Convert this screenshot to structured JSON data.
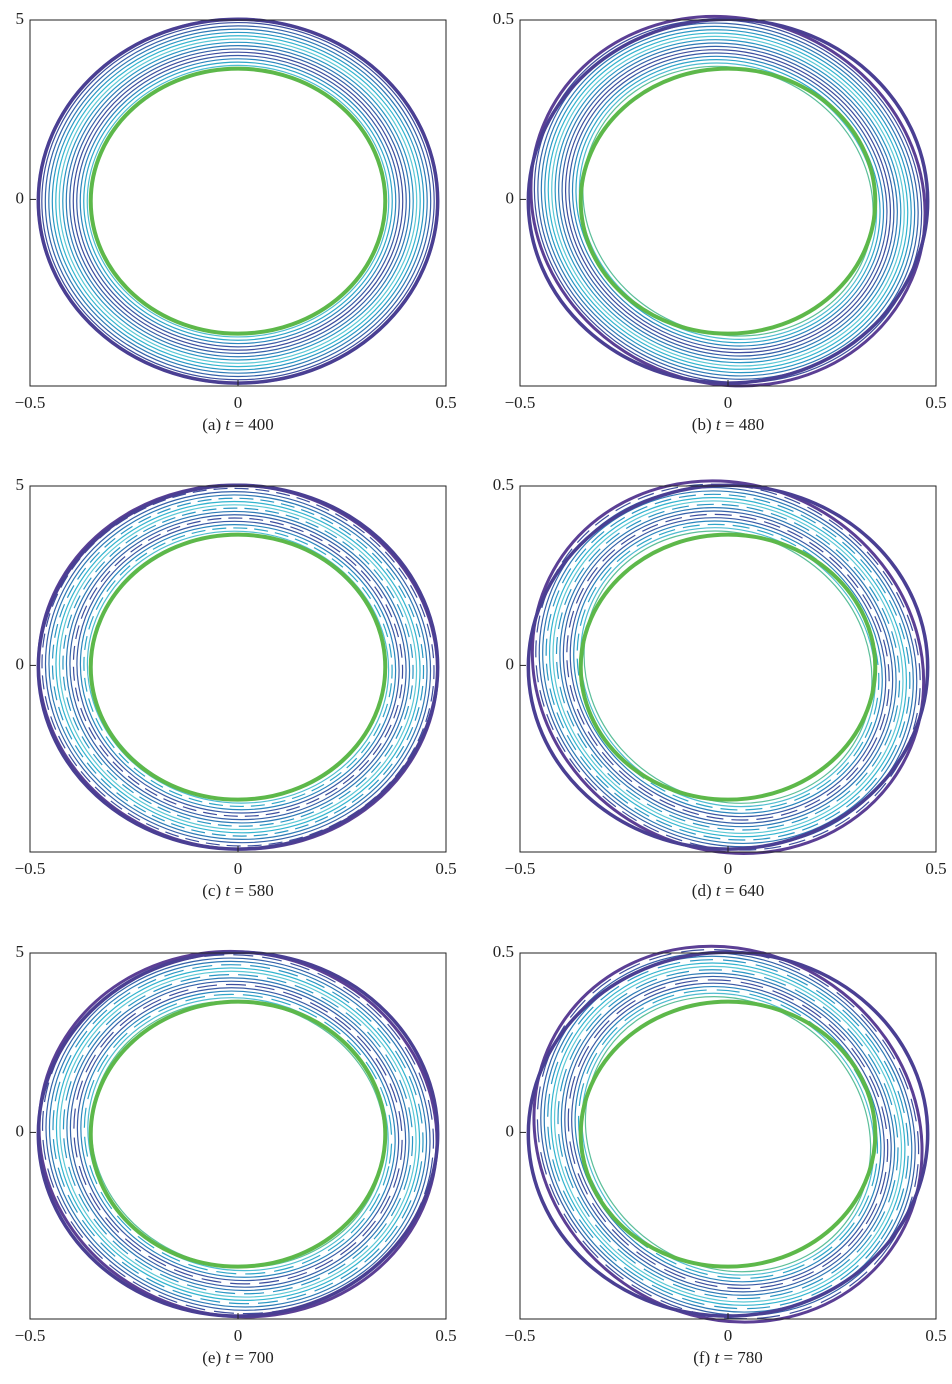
{
  "chart_data": [
    {
      "type": "contour",
      "caption": [
        "(a) ",
        "t",
        " = 400"
      ],
      "xlim": [
        -0.5,
        0.5
      ],
      "ylim": [
        -5.2,
        5
      ],
      "xticks": [
        {
          "value": -0.5,
          "label": "−0.5"
        },
        0,
        0.5
      ],
      "yticks": [
        5,
        0
      ]
    },
    {
      "type": "contour",
      "caption": [
        "(b) ",
        "t",
        " = 480"
      ],
      "xlim": [
        -0.5,
        0.5
      ],
      "ylim": [
        -0.52,
        0.5
      ],
      "xticks": [
        {
          "value": -0.5,
          "label": "−0.5"
        },
        0,
        0.5
      ],
      "yticks": [
        0.5,
        0
      ]
    },
    {
      "type": "contour",
      "caption": [
        "(c) ",
        "t",
        " = 580"
      ],
      "xlim": [
        -0.5,
        0.5
      ],
      "ylim": [
        -5.2,
        5
      ],
      "xticks": [
        {
          "value": -0.5,
          "label": "−0.5"
        },
        0,
        0.5
      ],
      "yticks": [
        5,
        0
      ]
    },
    {
      "type": "contour",
      "caption": [
        "(d) ",
        "t",
        " = 640"
      ],
      "xlim": [
        -0.5,
        0.5
      ],
      "ylim": [
        -0.52,
        0.5
      ],
      "xticks": [
        {
          "value": -0.5,
          "label": "−0.5"
        },
        0,
        0.5
      ],
      "yticks": [
        0.5,
        0
      ]
    },
    {
      "type": "contour",
      "caption": [
        "(e) ",
        "t",
        " = 700"
      ],
      "xlim": [
        -0.5,
        0.5
      ],
      "ylim": [
        -5.2,
        5
      ],
      "xticks": [
        {
          "value": -0.5,
          "label": "−0.5"
        },
        0,
        0.5
      ],
      "yticks": [
        5,
        0
      ]
    },
    {
      "type": "contour",
      "caption": [
        "(f) ",
        "t",
        " = 780"
      ],
      "xlim": [
        -0.5,
        0.5
      ],
      "ylim": [
        -0.52,
        0.5
      ],
      "xticks": [
        {
          "value": -0.5,
          "label": "−0.5"
        },
        0,
        0.5
      ],
      "yticks": [
        0.5,
        0
      ]
    }
  ]
}
